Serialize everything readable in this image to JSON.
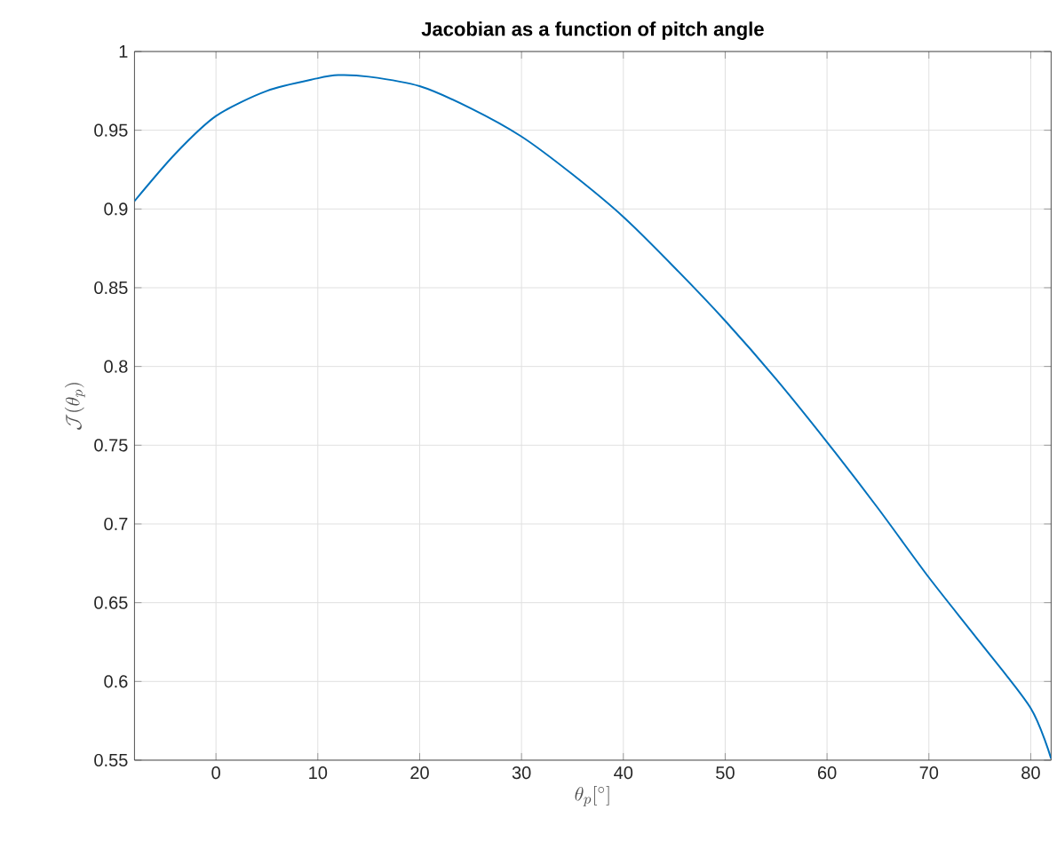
{
  "chart_data": {
    "type": "line",
    "title": "Jacobian as a function of pitch angle",
    "xlabel": "\\theta_p[^\\circ]",
    "ylabel": "\\mathcal{J}(\\theta_p)",
    "x": [
      -8,
      -4,
      0,
      5,
      10,
      12,
      15,
      20,
      25,
      30,
      35,
      40,
      45,
      50,
      55,
      60,
      65,
      70,
      75,
      80,
      82
    ],
    "series": [
      {
        "color": "#0072bd",
        "values": [
          0.905,
          0.935,
          0.959,
          0.975,
          0.983,
          0.985,
          0.984,
          0.978,
          0.964,
          0.946,
          0.922,
          0.895,
          0.863,
          0.829,
          0.792,
          0.752,
          0.71,
          0.666,
          0.625,
          0.583,
          0.551
        ]
      }
    ],
    "xlim": [
      -8,
      82
    ],
    "ylim": [
      0.55,
      1
    ],
    "xticks": [
      0,
      10,
      20,
      30,
      40,
      50,
      60,
      70,
      80
    ],
    "yticks": [
      0.55,
      0.6,
      0.65,
      0.7,
      0.75,
      0.8,
      0.85,
      0.9,
      0.95,
      1
    ],
    "grid": true,
    "marker": "none",
    "line_style": "solid"
  }
}
